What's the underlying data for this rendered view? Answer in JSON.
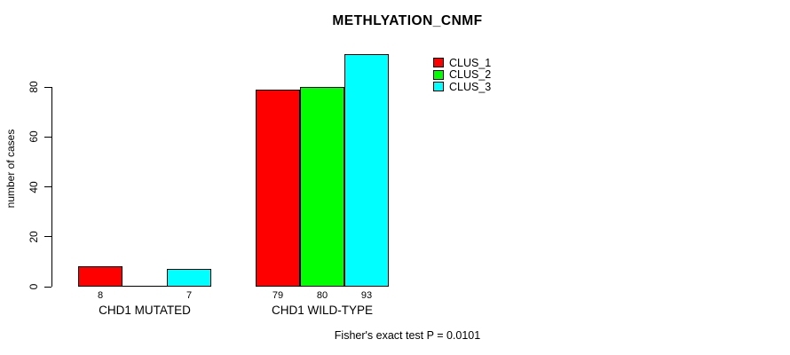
{
  "chart_data": {
    "type": "bar",
    "title": "METHLYATION_CNMF",
    "ylabel": "number of cases",
    "xlabel": "",
    "annotation": "Fisher's exact test P = 0.0101",
    "categories": [
      "CHD1 MUTATED",
      "CHD1 WILD-TYPE"
    ],
    "series": [
      {
        "name": "CLUS_1",
        "color": "#ff0000",
        "values": [
          8,
          79
        ],
        "labels": [
          "8",
          "79"
        ]
      },
      {
        "name": "CLUS_2",
        "color": "#00ff00",
        "values": [
          0,
          80
        ],
        "labels": [
          "",
          "80"
        ]
      },
      {
        "name": "CLUS_3",
        "color": "#00ffff",
        "values": [
          7,
          93
        ],
        "labels": [
          "7",
          "93"
        ]
      }
    ],
    "yticks": [
      0,
      20,
      40,
      60,
      80
    ],
    "ylim": [
      0,
      93
    ],
    "grid": false,
    "legend_position": "top-right",
    "colors": {
      "background": "#ffffff",
      "axis": "#000000",
      "text": "#000000"
    }
  }
}
